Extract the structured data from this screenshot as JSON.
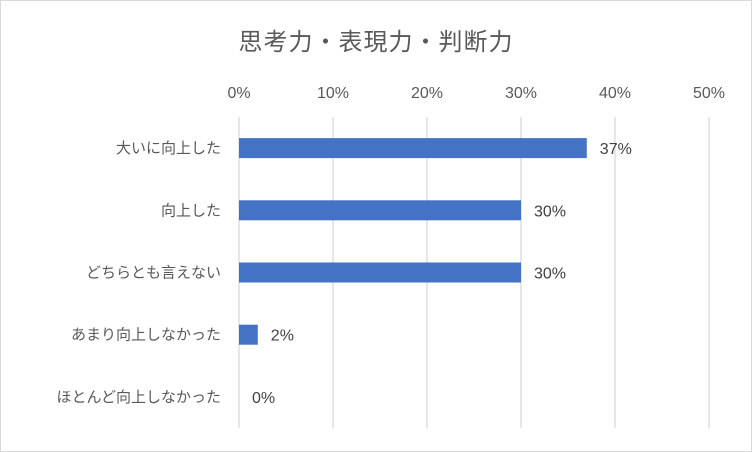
{
  "chart_data": {
    "type": "bar",
    "orientation": "horizontal",
    "title": "思考力・表現力・判断力",
    "categories": [
      "大いに向上した",
      "向上した",
      "どちらとも言えない",
      "あまり向上しなかった",
      "ほとんど向上しなかった"
    ],
    "values": [
      37,
      30,
      30,
      2,
      0
    ],
    "data_labels": [
      "37%",
      "30%",
      "30%",
      "2%",
      "0%"
    ],
    "xlim": [
      0,
      50
    ],
    "x_ticks": [
      0,
      10,
      20,
      30,
      40,
      50
    ],
    "x_tick_labels": [
      "0%",
      "10%",
      "20%",
      "30%",
      "40%",
      "50%"
    ],
    "x_axis_position": "top",
    "grid": true,
    "legend": "none",
    "bar_color": "#4472c4",
    "grid_color": "#d9d9d9"
  }
}
